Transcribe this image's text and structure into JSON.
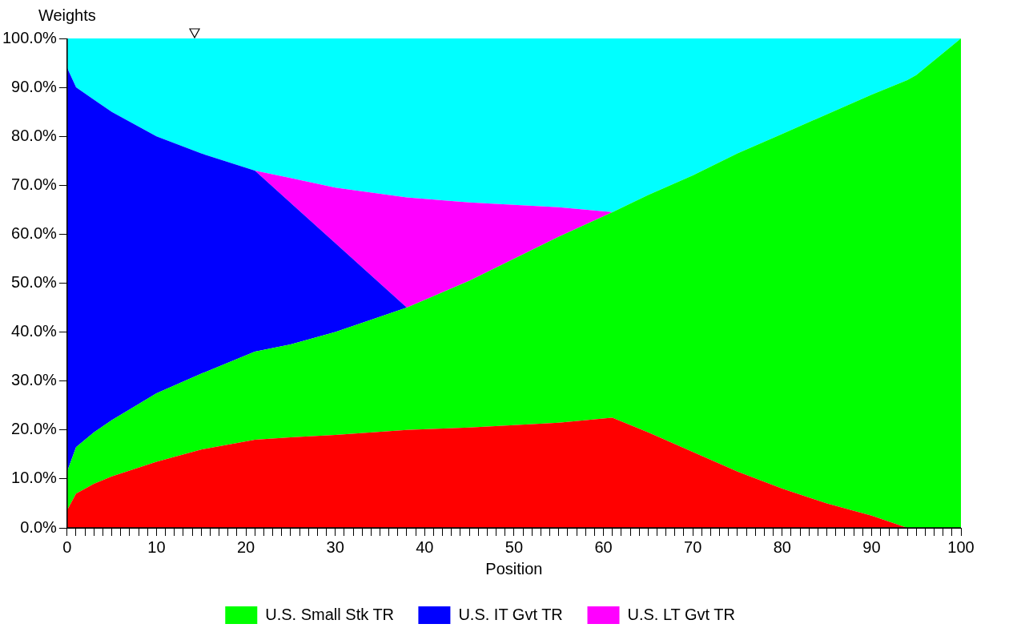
{
  "chart_data": {
    "type": "area",
    "stacked": true,
    "xlabel": "Position",
    "ylabel": "Weights",
    "x": [
      0,
      1,
      3,
      5,
      10,
      15,
      21,
      25,
      30,
      38,
      45,
      50,
      55,
      61,
      65,
      70,
      75,
      80,
      85,
      90,
      94,
      95,
      100
    ],
    "series": [
      {
        "color": "#ff0000",
        "values": [
          3.6,
          7,
          9,
          10.5,
          13.5,
          16,
          18,
          18.5,
          19,
          20,
          20.5,
          21,
          21.5,
          22.5,
          19.5,
          15.5,
          11.5,
          8,
          5,
          2.5,
          0,
          0,
          0
        ]
      },
      {
        "name": "U.S. Small Stk TR",
        "color": "#00ff00",
        "values": [
          7.9,
          9.5,
          10.5,
          11.5,
          14,
          15.5,
          18,
          19,
          21,
          25,
          30,
          34,
          38,
          42,
          48.5,
          56.5,
          65,
          72.5,
          79.5,
          86,
          91.5,
          92.5,
          100
        ]
      },
      {
        "name": "U.S. IT Gvt TR",
        "color": "#0000ff",
        "values": [
          82.5,
          73.5,
          68,
          63,
          52.5,
          45,
          37,
          28.9,
          18.2,
          0,
          0,
          0,
          0,
          0,
          0,
          0,
          0,
          0,
          0,
          0,
          0,
          0,
          0
        ]
      },
      {
        "name": "U.S. LT Gvt TR",
        "color": "#ff00ff",
        "values": [
          0,
          0,
          0,
          0,
          0,
          0,
          0,
          5.1,
          11.3,
          22.5,
          16,
          11,
          6,
          0,
          0,
          0,
          0,
          0,
          0,
          0,
          0,
          0,
          0
        ]
      },
      {
        "color": "#00ffff",
        "values": [
          6,
          10,
          12.5,
          15,
          20,
          23.5,
          27,
          28.5,
          30.5,
          32.5,
          33.5,
          34,
          34.5,
          35.5,
          32,
          28,
          23.5,
          19.5,
          15.5,
          11.5,
          8.5,
          7.5,
          0
        ]
      }
    ],
    "xlim": [
      0,
      100
    ],
    "xticks": [
      0,
      {
        "value": 1,
        "label": null
      },
      {
        "value": 2,
        "label": null
      },
      {
        "value": 3,
        "label": null
      },
      {
        "value": 4,
        "label": null
      },
      {
        "value": 5,
        "label": null
      },
      {
        "value": 6,
        "label": null
      },
      {
        "value": 7,
        "label": null
      },
      {
        "value": 8,
        "label": null
      },
      {
        "value": 9,
        "label": null
      },
      10,
      {
        "value": 11,
        "label": null
      },
      {
        "value": 12,
        "label": null
      },
      {
        "value": 13,
        "label": null
      },
      {
        "value": 14,
        "label": null
      },
      {
        "value": 15,
        "label": null
      },
      {
        "value": 16,
        "label": null
      },
      {
        "value": 17,
        "label": null
      },
      {
        "value": 18,
        "label": null
      },
      {
        "value": 19,
        "label": null
      },
      20,
      {
        "value": 21,
        "label": null
      },
      {
        "value": 22,
        "label": null
      },
      {
        "value": 23,
        "label": null
      },
      {
        "value": 24,
        "label": null
      },
      {
        "value": 25,
        "label": null
      },
      {
        "value": 26,
        "label": null
      },
      {
        "value": 27,
        "label": null
      },
      {
        "value": 28,
        "label": null
      },
      {
        "value": 29,
        "label": null
      },
      30,
      {
        "value": 31,
        "label": null
      },
      {
        "value": 32,
        "label": null
      },
      {
        "value": 33,
        "label": null
      },
      {
        "value": 34,
        "label": null
      },
      {
        "value": 35,
        "label": null
      },
      {
        "value": 36,
        "label": null
      },
      {
        "value": 37,
        "label": null
      },
      {
        "value": 38,
        "label": null
      },
      {
        "value": 39,
        "label": null
      },
      40,
      {
        "value": 41,
        "label": null
      },
      {
        "value": 42,
        "label": null
      },
      {
        "value": 43,
        "label": null
      },
      {
        "value": 44,
        "label": null
      },
      {
        "value": 45,
        "label": null
      },
      {
        "value": 46,
        "label": null
      },
      {
        "value": 47,
        "label": null
      },
      {
        "value": 48,
        "label": null
      },
      {
        "value": 49,
        "label": null
      },
      50,
      {
        "value": 51,
        "label": null
      },
      {
        "value": 52,
        "label": null
      },
      {
        "value": 53,
        "label": null
      },
      {
        "value": 54,
        "label": null
      },
      {
        "value": 55,
        "label": null
      },
      {
        "value": 56,
        "label": null
      },
      {
        "value": 57,
        "label": null
      },
      {
        "value": 58,
        "label": null
      },
      {
        "value": 59,
        "label": null
      },
      60,
      {
        "value": 61,
        "label": null
      },
      {
        "value": 62,
        "label": null
      },
      {
        "value": 63,
        "label": null
      },
      {
        "value": 64,
        "label": null
      },
      {
        "value": 65,
        "label": null
      },
      {
        "value": 66,
        "label": null
      },
      {
        "value": 67,
        "label": null
      },
      {
        "value": 68,
        "label": null
      },
      {
        "value": 69,
        "label": null
      },
      70,
      {
        "value": 71,
        "label": null
      },
      {
        "value": 72,
        "label": null
      },
      {
        "value": 73,
        "label": null
      },
      {
        "value": 74,
        "label": null
      },
      {
        "value": 75,
        "label": null
      },
      {
        "value": 76,
        "label": null
      },
      {
        "value": 77,
        "label": null
      },
      {
        "value": 78,
        "label": null
      },
      {
        "value": 79,
        "label": null
      },
      80,
      {
        "value": 81,
        "label": null
      },
      {
        "value": 82,
        "label": null
      },
      {
        "value": 83,
        "label": null
      },
      {
        "value": 84,
        "label": null
      },
      {
        "value": 85,
        "label": null
      },
      {
        "value": 86,
        "label": null
      },
      {
        "value": 87,
        "label": null
      },
      {
        "value": 88,
        "label": null
      },
      {
        "value": 89,
        "label": null
      },
      90,
      {
        "value": 91,
        "label": null
      },
      {
        "value": 92,
        "label": null
      },
      {
        "value": 93,
        "label": null
      },
      {
        "value": 94,
        "label": null
      },
      {
        "value": 95,
        "label": null
      },
      {
        "value": 96,
        "label": null
      },
      {
        "value": 97,
        "label": null
      },
      {
        "value": 98,
        "label": null
      },
      {
        "value": 99,
        "label": null
      },
      100
    ],
    "ylim": [
      0,
      100
    ],
    "yticks": [
      {
        "value": 0,
        "label": "0.0%"
      },
      {
        "value": 10,
        "label": "10.0%"
      },
      {
        "value": 20,
        "label": "20.0%"
      },
      {
        "value": 30,
        "label": "30.0%"
      },
      {
        "value": 40,
        "label": "40.0%"
      },
      {
        "value": 50,
        "label": "50.0%"
      },
      {
        "value": 60,
        "label": "60.0%"
      },
      {
        "value": 70,
        "label": "70.0%"
      },
      {
        "value": 80,
        "label": "80.0%"
      },
      {
        "value": 90,
        "label": "90.0%"
      },
      {
        "value": 100,
        "label": "100.0%"
      }
    ],
    "grid": false,
    "legend": "bottom",
    "marker": "none"
  }
}
